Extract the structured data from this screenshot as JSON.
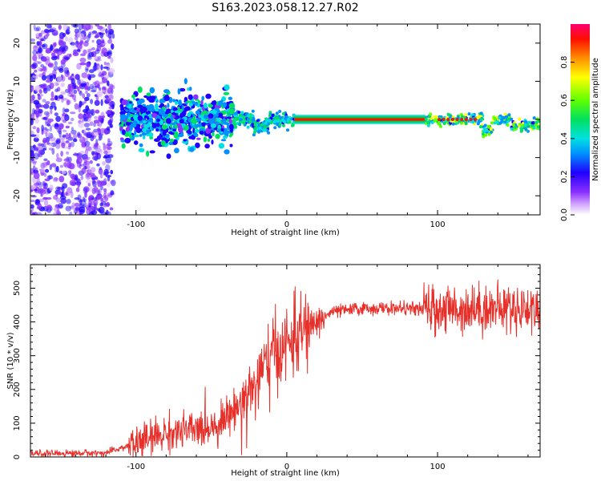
{
  "title": "S163.2023.058.12.27.R02",
  "chart_data": [
    {
      "type": "heatmap",
      "xlabel": "Height of straight line (km)",
      "ylabel": "Frequency (Hz)",
      "xlim": [
        -170,
        168
      ],
      "ylim": [
        -25,
        25
      ],
      "x_ticks": [
        -100,
        0,
        100
      ],
      "y_ticks": [
        -20,
        -10,
        0,
        10,
        20
      ],
      "colorbar": {
        "label": "Normalized spectral amplitude",
        "range": [
          0,
          1
        ],
        "ticks": [
          0.0,
          0.2,
          0.4,
          0.6,
          0.8
        ],
        "colors": [
          "#ffffff",
          "#c080ff",
          "#6000e8",
          "#0030ff",
          "#00d0ff",
          "#00e060",
          "#60ff00",
          "#ffff00",
          "#ff8000",
          "#ff0000",
          "#ff0060"
        ]
      },
      "description_regions": [
        {
          "x_range": [
            -170,
            -115
          ],
          "freq_spread": 25,
          "amplitude": 0.15
        },
        {
          "x_range": [
            -110,
            -35
          ],
          "freq_spread": 6,
          "amplitude": 0.35
        },
        {
          "x_range": [
            -35,
            5
          ],
          "freq_spread": 2,
          "amplitude": 0.45
        },
        {
          "x_range": [
            5,
            92
          ],
          "freq_spread": 0.6,
          "amplitude": 0.95
        },
        {
          "x_range": [
            92,
            168
          ],
          "freq_spread": 1.5,
          "amplitude": 0.8
        }
      ]
    },
    {
      "type": "line",
      "xlabel": "Height of straight line (km)",
      "ylabel": "SNR (10 * v/v)",
      "xlim": [
        -170,
        168
      ],
      "ylim": [
        0,
        570
      ],
      "x_ticks": [
        -100,
        0,
        100
      ],
      "y_ticks": [
        0,
        100,
        200,
        300,
        400,
        500
      ],
      "color": "#e8302a",
      "series": [
        {
          "values_description": "noisy SNR trace",
          "envelope": [
            [
              -170,
              10
            ],
            [
              -120,
              12
            ],
            [
              -100,
              40
            ],
            [
              -80,
              70
            ],
            [
              -60,
              80
            ],
            [
              -45,
              100
            ],
            [
              -30,
              160
            ],
            [
              -20,
              220
            ],
            [
              -10,
              300
            ],
            [
              0,
              330
            ],
            [
              10,
              370
            ],
            [
              20,
              400
            ],
            [
              30,
              430
            ],
            [
              50,
              440
            ],
            [
              80,
              440
            ],
            [
              100,
              435
            ],
            [
              120,
              440
            ],
            [
              140,
              440
            ],
            [
              168,
              440
            ]
          ]
        }
      ]
    }
  ]
}
